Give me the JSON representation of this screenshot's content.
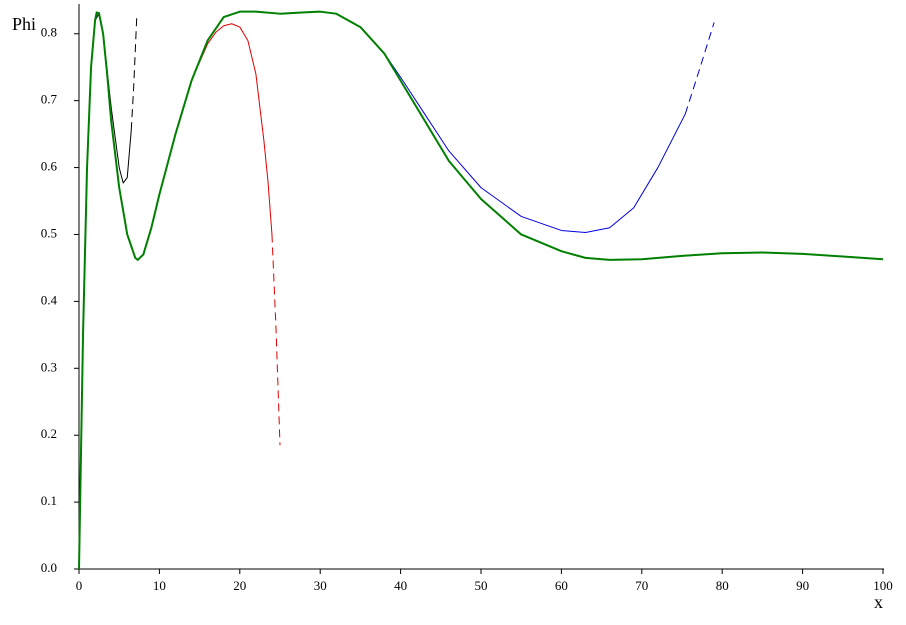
{
  "chart_data": {
    "type": "line",
    "xlabel": "x",
    "ylabel": "Phi",
    "xlim": [
      0,
      100
    ],
    "ylim": [
      0,
      0.84
    ],
    "xticks": [
      0,
      10,
      20,
      30,
      40,
      50,
      60,
      70,
      80,
      90,
      100
    ],
    "yticks": [
      {
        "value": 0,
        "label": "0.0"
      },
      0.1,
      0.2,
      0.3,
      0.4,
      0.5,
      0.6,
      0.7,
      0.8
    ],
    "series": [
      {
        "color": "#000000",
        "dashed": false,
        "line_width": 1,
        "x": [
          0,
          0.5,
          1,
          1.5,
          2,
          2.5,
          3,
          4,
          5,
          5.5,
          6,
          6.5
        ],
        "values": [
          0,
          0.35,
          0.6,
          0.75,
          0.82,
          0.83,
          0.8,
          0.69,
          0.6,
          0.577,
          0.585,
          0.656
        ]
      },
      {
        "color": "#000000",
        "dashed": true,
        "line_width": 1,
        "x": [
          6.5,
          6.8,
          7.2
        ],
        "values": [
          0.656,
          0.72,
          0.83
        ]
      },
      {
        "color": "#e00000",
        "dashed": false,
        "line_width": 1,
        "x": [
          0,
          0.5,
          1,
          1.5,
          2,
          2.5,
          3,
          3.5,
          4,
          5,
          6,
          7,
          7.3,
          8,
          9,
          10,
          12,
          14,
          16,
          17,
          18,
          19,
          20,
          21,
          22,
          23,
          23.5,
          24
        ],
        "values": [
          0,
          0.35,
          0.6,
          0.75,
          0.82,
          0.83,
          0.8,
          0.74,
          0.67,
          0.57,
          0.5,
          0.465,
          0.462,
          0.47,
          0.51,
          0.56,
          0.65,
          0.73,
          0.785,
          0.802,
          0.812,
          0.815,
          0.81,
          0.79,
          0.74,
          0.64,
          0.58,
          0.5
        ]
      },
      {
        "color": "#e00000",
        "dashed": true,
        "line_width": 1,
        "x": [
          24,
          24.5,
          25
        ],
        "values": [
          0.5,
          0.36,
          0.185
        ]
      },
      {
        "color": "#0000e0",
        "dashed": false,
        "line_width": 1,
        "x": [
          0,
          0.5,
          1,
          1.5,
          2,
          2.5,
          3,
          3.5,
          4,
          5,
          6,
          7,
          7.3,
          8,
          9,
          10,
          12,
          14,
          16,
          18,
          20,
          22,
          25,
          28,
          30,
          32,
          35,
          38,
          40,
          43,
          46,
          50,
          55,
          60,
          63,
          66,
          69,
          72,
          75.4
        ],
        "values": [
          0,
          0.35,
          0.6,
          0.75,
          0.82,
          0.832,
          0.8,
          0.74,
          0.67,
          0.57,
          0.5,
          0.465,
          0.462,
          0.47,
          0.51,
          0.56,
          0.65,
          0.73,
          0.79,
          0.825,
          0.833,
          0.833,
          0.83,
          0.832,
          0.833,
          0.83,
          0.81,
          0.77,
          0.735,
          0.68,
          0.625,
          0.57,
          0.527,
          0.506,
          0.503,
          0.51,
          0.54,
          0.6,
          0.68
        ]
      },
      {
        "color": "#0000e0",
        "dashed": true,
        "line_width": 1,
        "x": [
          75.4,
          77,
          79
        ],
        "values": [
          0.68,
          0.74,
          0.817
        ]
      },
      {
        "color": "#008000",
        "dashed": false,
        "line_width": 2,
        "x": [
          0,
          0.5,
          1,
          1.5,
          2,
          2.2,
          2.5,
          3,
          3.5,
          4,
          5,
          6,
          7,
          7.3,
          8,
          9,
          10,
          12,
          14,
          16,
          18,
          20,
          22,
          25,
          28,
          30,
          32,
          35,
          38,
          40,
          43,
          46,
          50,
          55,
          60,
          63,
          66,
          70,
          75,
          80,
          85,
          90,
          95,
          100
        ],
        "values": [
          0,
          0.35,
          0.6,
          0.75,
          0.82,
          0.832,
          0.83,
          0.8,
          0.74,
          0.67,
          0.57,
          0.5,
          0.465,
          0.462,
          0.47,
          0.51,
          0.56,
          0.65,
          0.73,
          0.79,
          0.825,
          0.833,
          0.833,
          0.83,
          0.832,
          0.833,
          0.83,
          0.81,
          0.77,
          0.73,
          0.67,
          0.61,
          0.553,
          0.5,
          0.475,
          0.465,
          0.462,
          0.463,
          0.468,
          0.472,
          0.473,
          0.471,
          0.467,
          0.463
        ]
      }
    ]
  }
}
